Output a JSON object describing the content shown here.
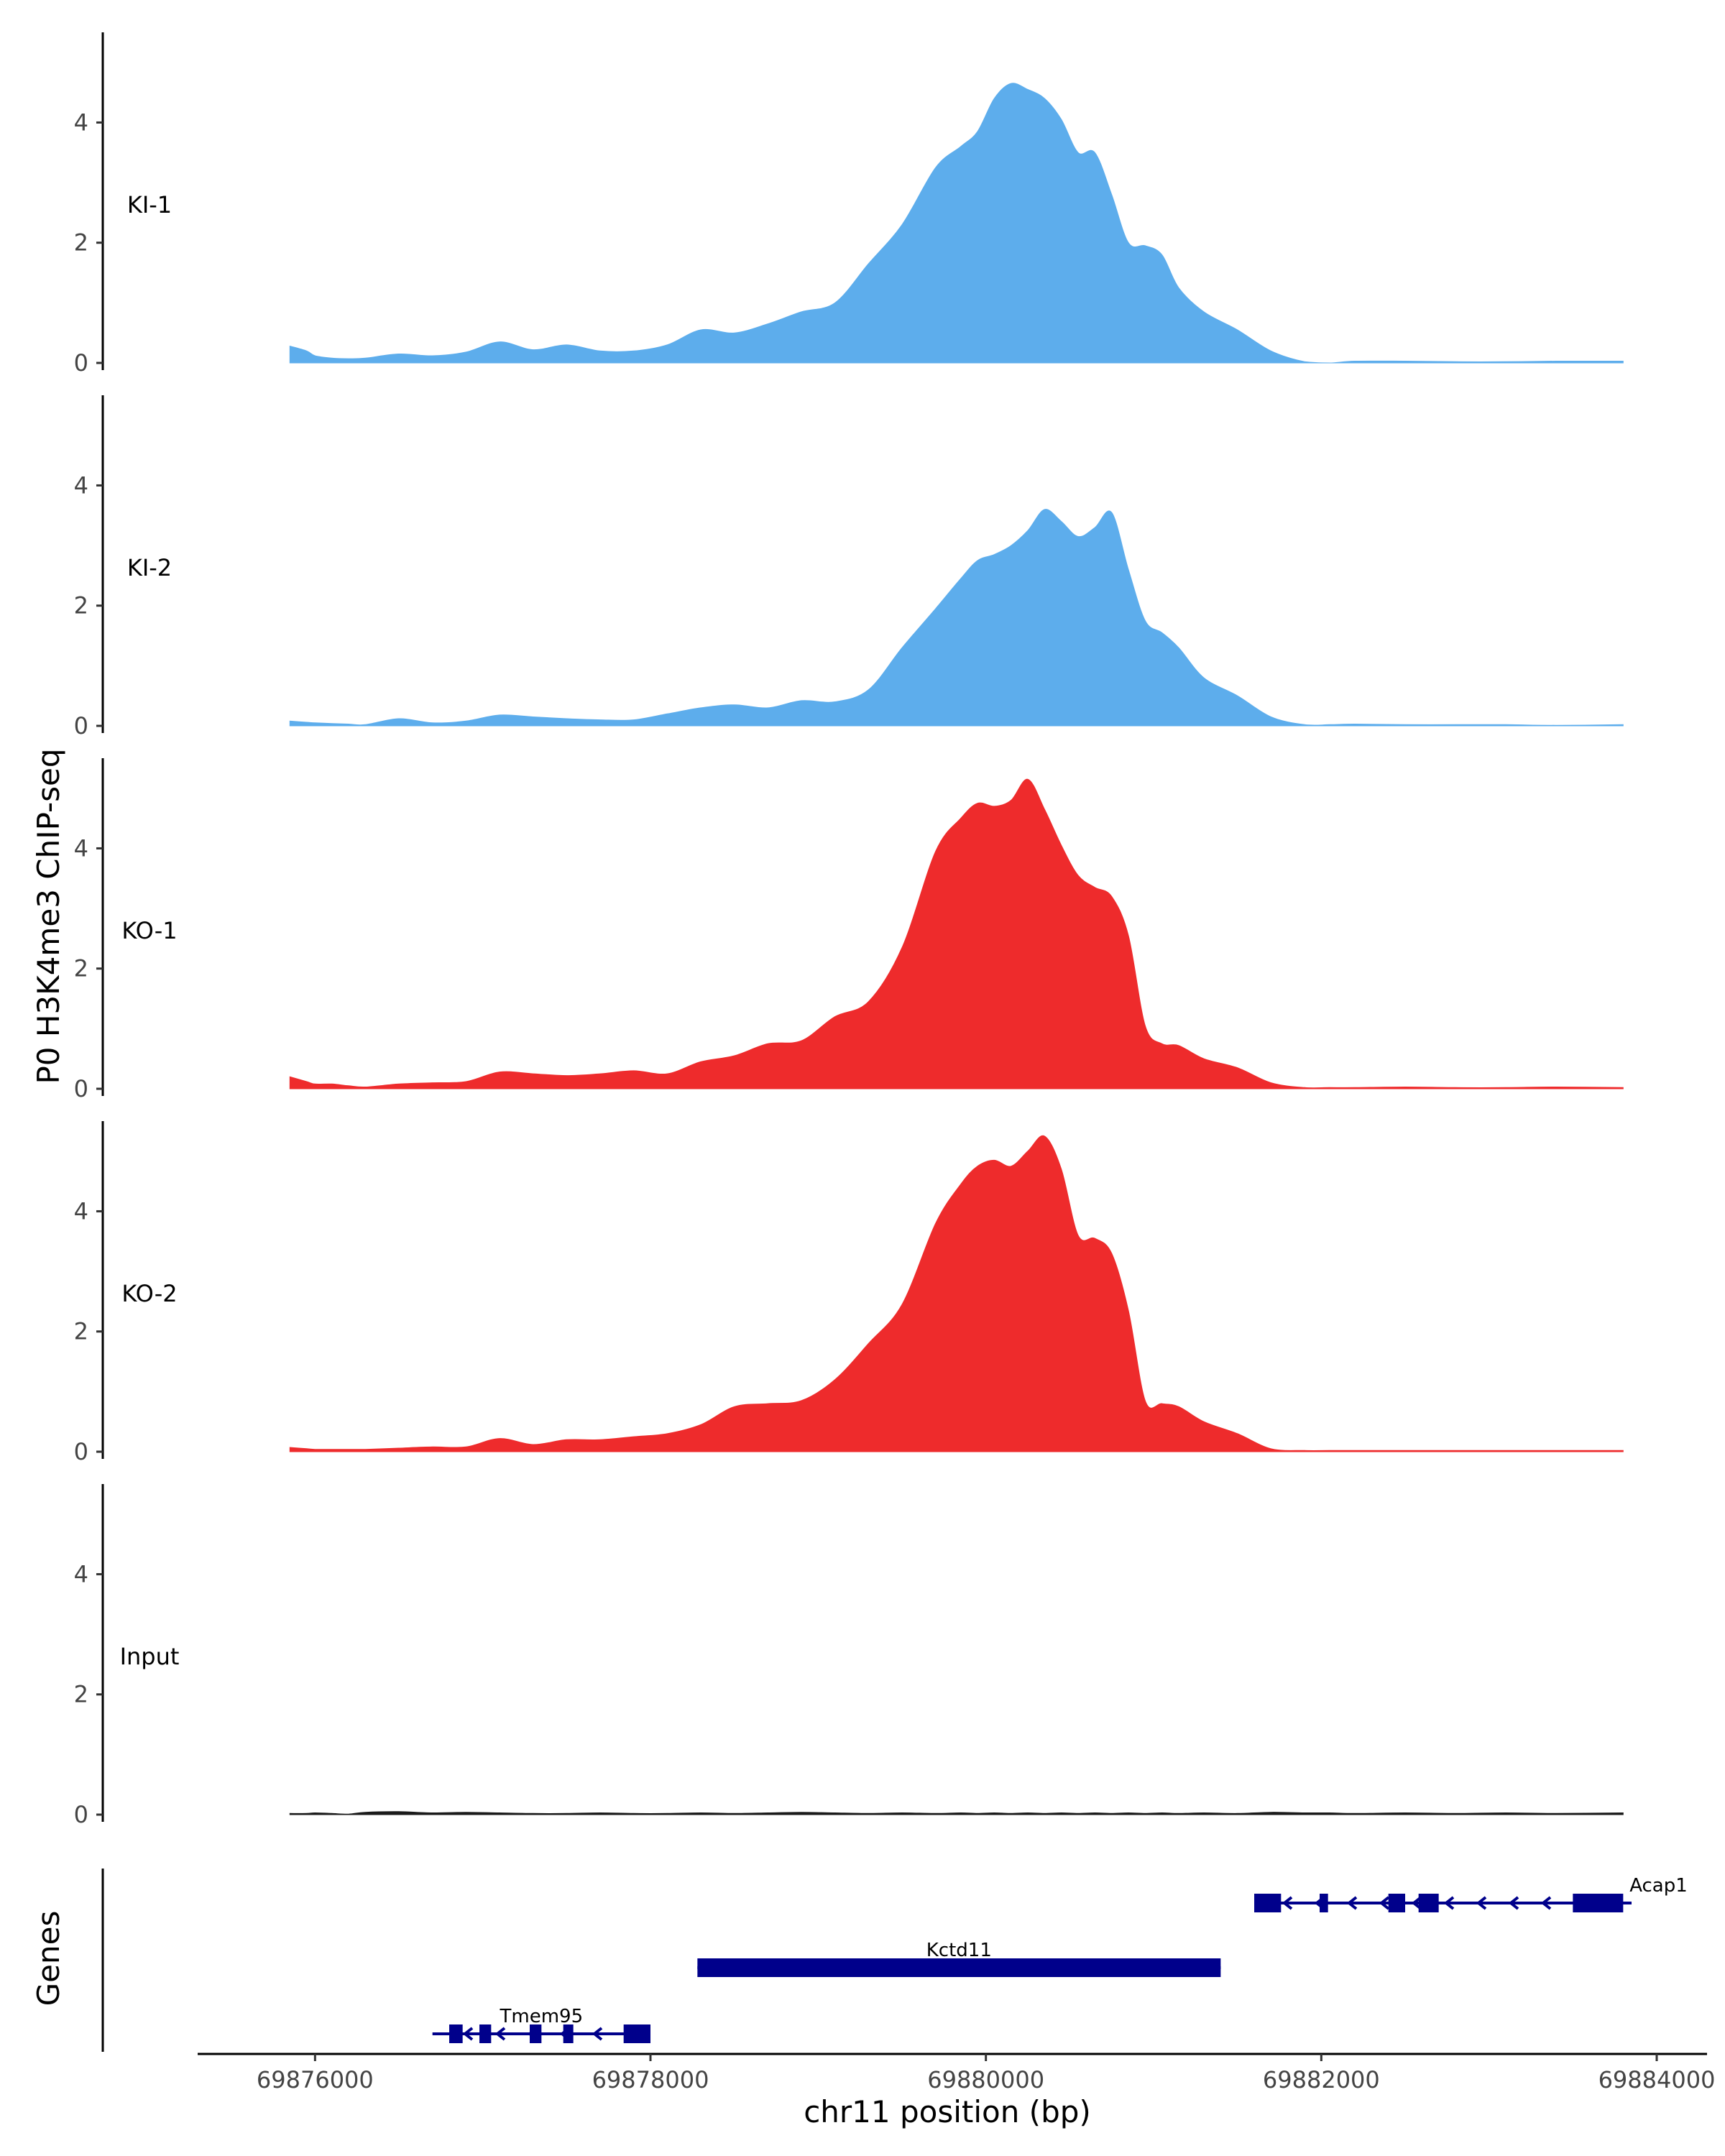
{
  "chart_data": {
    "type": "area",
    "ylabel": "P0 H3K4me3 ChIP-seq",
    "xlabel": "chr11 position (bp)",
    "xlim": [
      69875300,
      69884300
    ],
    "ylim": [
      0,
      5.5
    ],
    "y_ticks": [
      0,
      2,
      4
    ],
    "x_ticks": [
      69876000,
      69878000,
      69880000,
      69882000,
      69884000
    ],
    "x_tick_labels": [
      "69876000",
      "69878000",
      "69880000",
      "69882000",
      "69884000"
    ],
    "x": [
      69875850,
      69875950,
      69876000,
      69876100,
      69876200,
      69876300,
      69876500,
      69876700,
      69876900,
      69877100,
      69877300,
      69877500,
      69877700,
      69877900,
      69878100,
      69878300,
      69878500,
      69878700,
      69878900,
      69879100,
      69879300,
      69879500,
      69879700,
      69879850,
      69879950,
      69880050,
      69880150,
      69880250,
      69880350,
      69880450,
      69880550,
      69880650,
      69880750,
      69880850,
      69880950,
      69881050,
      69881150,
      69881300,
      69881500,
      69881700,
      69881900,
      69882050,
      69882200,
      69882500,
      69882800,
      69883100,
      69883400,
      69883800
    ],
    "series": [
      {
        "name": "KI-1",
        "color": "#5DADEC",
        "values": [
          0.28,
          0.2,
          0.12,
          0.08,
          0.07,
          0.08,
          0.15,
          0.12,
          0.18,
          0.35,
          0.22,
          0.3,
          0.2,
          0.2,
          0.3,
          0.55,
          0.5,
          0.65,
          0.85,
          1.0,
          1.65,
          2.3,
          3.25,
          3.6,
          3.85,
          4.4,
          4.65,
          4.55,
          4.4,
          4.05,
          3.5,
          3.5,
          2.8,
          2.0,
          1.95,
          1.8,
          1.25,
          0.85,
          0.55,
          0.2,
          0.02,
          0.0,
          0.03,
          0.03,
          0.02,
          0.02,
          0.03,
          0.03
        ]
      },
      {
        "name": "KI-2",
        "color": "#5DADEC",
        "values": [
          0.08,
          0.06,
          0.05,
          0.04,
          0.03,
          0.02,
          0.12,
          0.05,
          0.08,
          0.18,
          0.15,
          0.12,
          0.1,
          0.1,
          0.2,
          0.3,
          0.35,
          0.3,
          0.42,
          0.4,
          0.6,
          1.3,
          1.95,
          2.45,
          2.75,
          2.85,
          3.0,
          3.25,
          3.6,
          3.4,
          3.15,
          3.3,
          3.55,
          2.6,
          1.75,
          1.55,
          1.3,
          0.8,
          0.5,
          0.15,
          0.02,
          0.02,
          0.03,
          0.02,
          0.02,
          0.02,
          0.01,
          0.02
        ]
      },
      {
        "name": "KO-1",
        "color": "#EE2B2C",
        "values": [
          0.2,
          0.12,
          0.08,
          0.08,
          0.05,
          0.03,
          0.08,
          0.1,
          0.12,
          0.28,
          0.25,
          0.22,
          0.25,
          0.3,
          0.25,
          0.45,
          0.55,
          0.75,
          0.8,
          1.2,
          1.45,
          2.35,
          3.95,
          4.5,
          4.75,
          4.7,
          4.8,
          5.15,
          4.65,
          4.05,
          3.55,
          3.35,
          3.2,
          2.55,
          1.05,
          0.75,
          0.72,
          0.5,
          0.35,
          0.1,
          0.02,
          0.02,
          0.02,
          0.03,
          0.02,
          0.02,
          0.03,
          0.02
        ]
      },
      {
        "name": "KO-2",
        "color": "#EE2B2C",
        "values": [
          0.07,
          0.05,
          0.04,
          0.04,
          0.04,
          0.04,
          0.06,
          0.08,
          0.08,
          0.22,
          0.12,
          0.2,
          0.2,
          0.25,
          0.3,
          0.45,
          0.75,
          0.8,
          0.85,
          1.2,
          1.8,
          2.45,
          3.8,
          4.45,
          4.75,
          4.85,
          4.75,
          5.0,
          5.25,
          4.7,
          3.6,
          3.55,
          3.3,
          2.35,
          0.85,
          0.8,
          0.75,
          0.5,
          0.3,
          0.05,
          0.02,
          0.02,
          0.02,
          0.02,
          0.02,
          0.02,
          0.02,
          0.02
        ]
      },
      {
        "name": "Input",
        "color": "#1a1a1a",
        "values": [
          0.02,
          0.02,
          0.03,
          0.02,
          0.01,
          0.04,
          0.05,
          0.03,
          0.04,
          0.03,
          0.02,
          0.02,
          0.03,
          0.02,
          0.02,
          0.03,
          0.02,
          0.03,
          0.04,
          0.03,
          0.02,
          0.03,
          0.02,
          0.03,
          0.02,
          0.03,
          0.02,
          0.03,
          0.02,
          0.03,
          0.02,
          0.03,
          0.02,
          0.03,
          0.02,
          0.03,
          0.02,
          0.03,
          0.02,
          0.04,
          0.03,
          0.03,
          0.02,
          0.03,
          0.02,
          0.03,
          0.02,
          0.03
        ]
      }
    ],
    "genes": {
      "title": "Genes",
      "color": "#00008B",
      "items": [
        {
          "name": "Acap1",
          "start": 69881600,
          "end": 69883850,
          "row": 0,
          "strand": "-",
          "exons": [
            [
              69881600,
              69881760
            ],
            [
              69881990,
              69882040
            ],
            [
              69882400,
              69882500
            ],
            [
              69882580,
              69882700
            ],
            [
              69883500,
              69883800
            ]
          ]
        },
        {
          "name": "Kctd11",
          "start": 69878280,
          "end": 69881400,
          "row": 1,
          "strand": "",
          "exons": [
            [
              69878280,
              69881400
            ]
          ]
        },
        {
          "name": "Tmem95",
          "start": 69876700,
          "end": 69878000,
          "row": 2,
          "strand": "-",
          "exons": [
            [
              69876800,
              69876880
            ],
            [
              69876980,
              69877050
            ],
            [
              69877280,
              69877350
            ],
            [
              69877480,
              69877540
            ],
            [
              69877840,
              69878000
            ]
          ]
        }
      ]
    }
  }
}
